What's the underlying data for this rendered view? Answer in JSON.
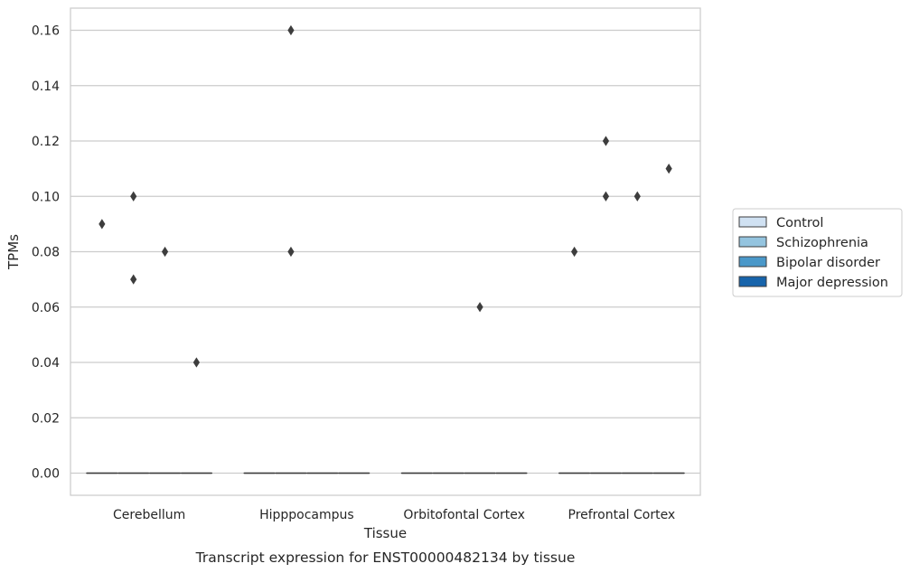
{
  "chart_data": {
    "type": "box",
    "title": "",
    "caption": "Transcript expression for ENST00000482134 by tissue",
    "xlabel": "Tissue",
    "ylabel": "TPMs",
    "ylim": [
      -0.008,
      0.168
    ],
    "yticks": [
      0.0,
      0.02,
      0.04,
      0.06,
      0.08,
      0.1,
      0.12,
      0.14,
      0.16
    ],
    "ytick_labels": [
      "0.00",
      "0.02",
      "0.04",
      "0.06",
      "0.08",
      "0.10",
      "0.12",
      "0.14",
      "0.16"
    ],
    "grid": "horizontal",
    "legend_position": "right",
    "categories": [
      "Cerebellum",
      "Hipppocampus",
      "Orbitofontal Cortex",
      "Prefrontal Cortex"
    ],
    "series": [
      {
        "name": "Control",
        "color": "#d0e1f2",
        "box": [
          [
            0,
            0,
            0,
            0,
            0
          ],
          [
            0,
            0,
            0,
            0,
            0
          ],
          [
            0,
            0,
            0,
            0,
            0
          ],
          [
            0,
            0,
            0,
            0,
            0
          ]
        ],
        "outliers": [
          [
            0.09
          ],
          [],
          [],
          [
            0.08
          ]
        ]
      },
      {
        "name": "Schizophrenia",
        "color": "#94c4df",
        "box": [
          [
            0,
            0,
            0,
            0,
            0
          ],
          [
            0,
            0,
            0,
            0,
            0
          ],
          [
            0,
            0,
            0,
            0,
            0
          ],
          [
            0,
            0,
            0,
            0,
            0
          ]
        ],
        "outliers": [
          [
            0.1,
            0.07
          ],
          [
            0.16,
            0.08
          ],
          [],
          [
            0.12,
            0.1
          ]
        ]
      },
      {
        "name": "Bipolar disorder",
        "color": "#4a98c9",
        "box": [
          [
            0,
            0,
            0,
            0,
            0
          ],
          [
            0,
            0,
            0,
            0,
            0
          ],
          [
            0,
            0,
            0,
            0,
            0
          ],
          [
            0,
            0,
            0,
            0,
            0
          ]
        ],
        "outliers": [
          [
            0.08
          ],
          [],
          [
            0.06
          ],
          [
            0.1
          ]
        ]
      },
      {
        "name": "Major depression",
        "color": "#1764ab",
        "box": [
          [
            0,
            0,
            0,
            0,
            0
          ],
          [
            0,
            0,
            0,
            0,
            0
          ],
          [
            0,
            0,
            0,
            0,
            0
          ],
          [
            0,
            0,
            0,
            0,
            0
          ]
        ],
        "outliers": [
          [
            0.04
          ],
          [],
          [],
          [
            0.11
          ]
        ]
      }
    ]
  }
}
